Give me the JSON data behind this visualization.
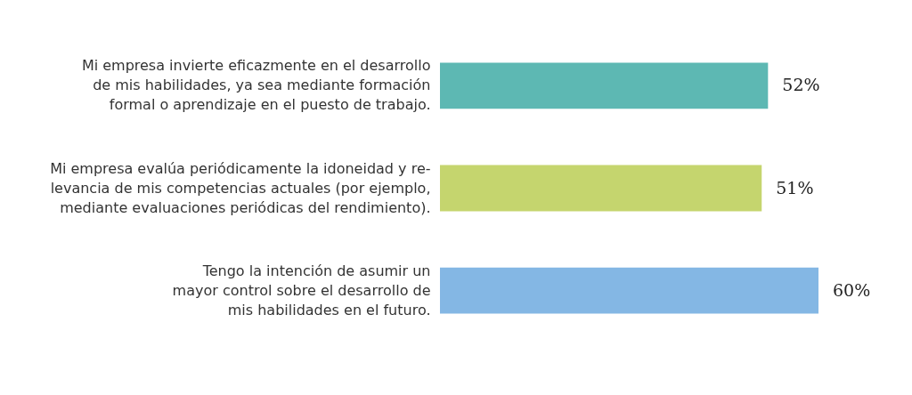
{
  "chart_data": {
    "type": "bar",
    "orientation": "horizontal",
    "categories": [
      "Mi empresa invierte eficazmente en el desarrollo\nde mis habilidades, ya sea mediante formación\nformal o aprendizaje en el puesto de trabajo.",
      "Mi empresa evalúa periódicamente la idoneidad y re-\nlevancia de mis competencias actuales (por ejemplo,\nmediante evaluaciones periódicas del rendimiento).",
      "Tengo la intención de asumir un\nmayor control sobre el desarrollo de\nmis habilidades en el futuro."
    ],
    "values": [
      52,
      51,
      60
    ],
    "colors": [
      "#5db8b3",
      "#c5d56e",
      "#84b7e4"
    ],
    "value_labels": [
      "52%",
      "51%",
      "60%"
    ],
    "tick_labels": "y"
  }
}
